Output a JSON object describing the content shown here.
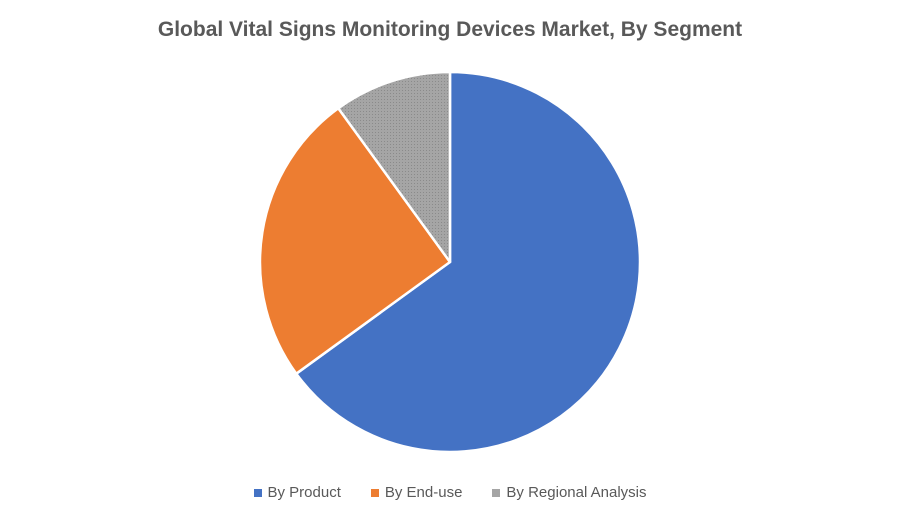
{
  "chart_data": {
    "type": "pie",
    "title": "Global Vital Signs Monitoring Devices Market, By Segment",
    "slices": [
      {
        "label": "By Product",
        "value": 65,
        "color": "#4472C4"
      },
      {
        "label": "By End-use",
        "value": 25,
        "color": "#ED7D31"
      },
      {
        "label": "By Regional Analysis",
        "value": 10,
        "color": "#A5A5A5"
      }
    ],
    "legend_position": "bottom"
  }
}
